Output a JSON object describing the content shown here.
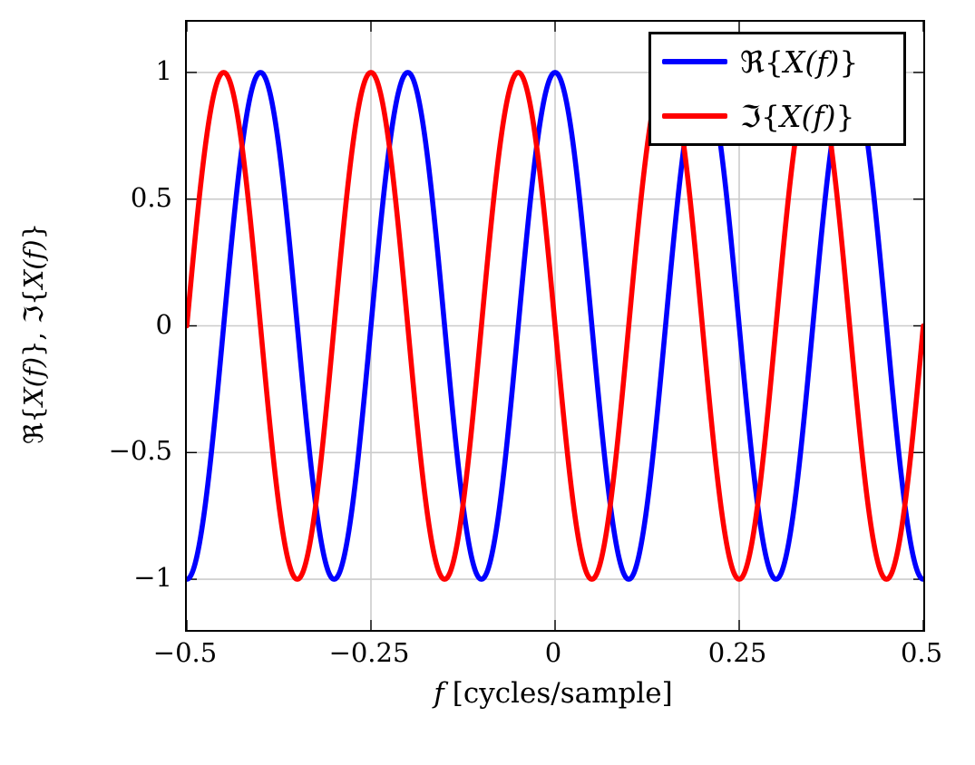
{
  "figure": {
    "background": "#ffffff",
    "axis_color": "#000000",
    "grid_color": "#cbcbcb",
    "tick_color": "#000000"
  },
  "chart_data": {
    "type": "line",
    "xlabel": "f [cycles/sample]",
    "xlabel_rich": [
      {
        "t": "f",
        "i": true
      },
      {
        "t": "[cycles/sample]",
        "i": false
      }
    ],
    "ylabel": "ℜ{X(f)}, ℑ{X(f)}",
    "ylabel_rich": [
      {
        "t": "ℜ{",
        "i": false
      },
      {
        "t": "X(f)",
        "i": true
      },
      {
        "t": "}, ℑ{",
        "i": false
      },
      {
        "t": "X(f)",
        "i": true
      },
      {
        "t": "}",
        "i": false
      }
    ],
    "xlim": [
      -0.5,
      0.5
    ],
    "ylim": [
      -1.2,
      1.2
    ],
    "grid": true,
    "x_ticks": {
      "values": [
        -0.5,
        -0.25,
        0,
        0.25,
        0.5
      ],
      "labels": [
        "−0.5",
        "−0.25",
        "0",
        "0.25",
        "0.5"
      ]
    },
    "y_ticks": {
      "values": [
        1,
        0.5,
        0,
        -0.5,
        -1
      ],
      "labels": [
        "1",
        "0.5",
        "0",
        "−0.5",
        "−1"
      ]
    },
    "legend": {
      "position": "top-right"
    },
    "x_samples": [
      -0.5,
      -0.475,
      -0.45,
      -0.425,
      -0.4,
      -0.375,
      -0.35,
      -0.325,
      -0.3,
      -0.275,
      -0.25,
      -0.225,
      -0.2,
      -0.175,
      -0.15,
      -0.125,
      -0.1,
      -0.075,
      -0.05,
      -0.025,
      0,
      0.025,
      0.05,
      0.075,
      0.1,
      0.125,
      0.15,
      0.175,
      0.2,
      0.225,
      0.25,
      0.275,
      0.3,
      0.325,
      0.35,
      0.375,
      0.4,
      0.425,
      0.45,
      0.475,
      0.5
    ],
    "series": [
      {
        "id": "re",
        "label": "ℜ{X(f)}",
        "label_rich": [
          {
            "t": "ℜ{",
            "i": false
          },
          {
            "t": "X(f)",
            "i": true
          },
          {
            "t": "}",
            "i": false
          }
        ],
        "color": "#0000ff",
        "generator": {
          "fn": "cos",
          "sign": 1,
          "cycles": 5
        },
        "values": [
          -1,
          -0.707,
          0,
          0.707,
          1,
          0.707,
          0,
          -0.707,
          -1,
          -0.707,
          0,
          0.707,
          1,
          0.707,
          0,
          -0.707,
          -1,
          -0.707,
          0,
          0.707,
          1,
          0.707,
          0,
          -0.707,
          -1,
          -0.707,
          0,
          0.707,
          1,
          0.707,
          0,
          -0.707,
          -1,
          -0.707,
          0,
          0.707,
          1,
          0.707,
          0,
          -0.707,
          -1
        ]
      },
      {
        "id": "im",
        "label": "ℑ{X(f)}",
        "label_rich": [
          {
            "t": "ℑ{",
            "i": false
          },
          {
            "t": "X(f)",
            "i": true
          },
          {
            "t": "}",
            "i": false
          }
        ],
        "color": "#ff0000",
        "generator": {
          "fn": "sin",
          "sign": -1,
          "cycles": 5
        },
        "values": [
          0,
          0.707,
          1,
          0.707,
          0,
          -0.707,
          -1,
          -0.707,
          0,
          0.707,
          1,
          0.707,
          0,
          -0.707,
          -1,
          -0.707,
          0,
          0.707,
          1,
          0.707,
          0,
          -0.707,
          -1,
          -0.707,
          0,
          0.707,
          1,
          0.707,
          0,
          -0.707,
          -1,
          -0.707,
          0,
          0.707,
          1,
          0.707,
          0,
          -0.707,
          -1,
          -0.707,
          0
        ]
      }
    ]
  }
}
